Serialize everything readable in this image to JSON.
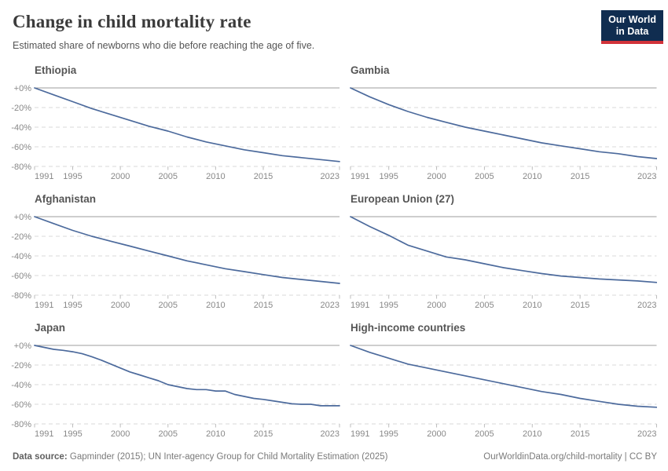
{
  "header": {
    "title": "Change in child mortality rate",
    "subtitle": "Estimated share of newborns who die before reaching the age of five.",
    "logo": {
      "line1": "Our World",
      "line2": "in Data"
    }
  },
  "footer": {
    "datasource_label": "Data source:",
    "datasource_text": "Gapminder (2015); UN Inter-agency Group for Child Mortality Estimation (2025)",
    "url_text": "OurWorldinData.org/child-mortality | CC BY"
  },
  "colors": {
    "line": "#4C6A9C",
    "zero_axis": "#9d9d9d",
    "grid": "#dadada",
    "tick": "#bdbdbd",
    "tick_label": "#888888",
    "logo_bg": "#102d50",
    "logo_red": "#d13239"
  },
  "axes": {
    "xticks": [
      1991,
      1995,
      2000,
      2005,
      2010,
      2015,
      2023
    ],
    "xrange": [
      1991,
      2023
    ],
    "ylim": [
      -80,
      0
    ],
    "yticks": [
      {
        "label": "+0%",
        "value": 0
      },
      {
        "label": "-20%",
        "value": -20
      },
      {
        "label": "-40%",
        "value": -40
      },
      {
        "label": "-60%",
        "value": -60
      },
      {
        "label": "-80%",
        "value": -80
      }
    ],
    "grid": "dashed"
  },
  "chart_data": [
    {
      "type": "line",
      "title": "Ethiopia",
      "ylim": [
        -80,
        0
      ],
      "x": [
        1991,
        1993,
        1995,
        1997,
        1999,
        2001,
        2003,
        2005,
        2007,
        2009,
        2011,
        2013,
        2015,
        2017,
        2019,
        2021,
        2023
      ],
      "values": [
        0,
        -7,
        -14,
        -21,
        -27,
        -33,
        -39,
        -44,
        -50,
        -55,
        -59,
        -63,
        -66,
        -69,
        -71,
        -73,
        -75
      ]
    },
    {
      "type": "line",
      "title": "Gambia",
      "ylim": [
        -80,
        0
      ],
      "x": [
        1991,
        1993,
        1995,
        1997,
        1999,
        2001,
        2003,
        2005,
        2007,
        2009,
        2011,
        2013,
        2015,
        2017,
        2019,
        2021,
        2023
      ],
      "values": [
        0,
        -9,
        -17,
        -24,
        -30,
        -35,
        -40,
        -44,
        -48,
        -52,
        -56,
        -59,
        -62,
        -65,
        -67,
        -70,
        -72
      ]
    },
    {
      "type": "line",
      "title": "Afghanistan",
      "ylim": [
        -80,
        0
      ],
      "x": [
        1991,
        1993,
        1995,
        1997,
        1999,
        2001,
        2003,
        2005,
        2007,
        2009,
        2011,
        2013,
        2015,
        2017,
        2019,
        2021,
        2023
      ],
      "values": [
        0,
        -7,
        -14,
        -20,
        -25,
        -30,
        -35,
        -40,
        -45,
        -49,
        -53,
        -56,
        -59,
        -62,
        -64,
        -66,
        -68
      ]
    },
    {
      "type": "line",
      "title": "European Union (27)",
      "ylim": [
        -80,
        0
      ],
      "x": [
        1991,
        1993,
        1995,
        1997,
        1999,
        2001,
        2003,
        2005,
        2007,
        2009,
        2011,
        2013,
        2015,
        2017,
        2019,
        2021,
        2023
      ],
      "values": [
        0,
        -10,
        -19,
        -29,
        -35,
        -41,
        -44,
        -48,
        -52,
        -55,
        -58,
        -60.5,
        -62,
        -63.5,
        -64.5,
        -65.5,
        -67
      ]
    },
    {
      "type": "line",
      "title": "Japan",
      "ylim": [
        -80,
        0
      ],
      "x": [
        1991,
        1992,
        1993,
        1994,
        1995,
        1996,
        1997,
        1998,
        1999,
        2000,
        2001,
        2002,
        2003,
        2004,
        2005,
        2006,
        2007,
        2008,
        2009,
        2010,
        2011,
        2012,
        2013,
        2014,
        2015,
        2016,
        2017,
        2018,
        2019,
        2020,
        2021,
        2022,
        2023
      ],
      "values": [
        0,
        -2,
        -4,
        -5,
        -6.5,
        -8.5,
        -11.5,
        -15,
        -19,
        -23,
        -27,
        -30,
        -33,
        -36,
        -40,
        -42,
        -44,
        -45,
        -45,
        -46.5,
        -46.5,
        -50,
        -52,
        -54,
        -55,
        -56.5,
        -58,
        -59.5,
        -60,
        -60,
        -61.5,
        -61.5,
        -61.5
      ]
    },
    {
      "type": "line",
      "title": "High-income countries",
      "ylim": [
        -80,
        0
      ],
      "x": [
        1991,
        1993,
        1995,
        1997,
        1999,
        2001,
        2003,
        2005,
        2007,
        2009,
        2011,
        2013,
        2015,
        2017,
        2019,
        2021,
        2023
      ],
      "values": [
        0,
        -7,
        -13,
        -19,
        -23,
        -27,
        -31,
        -35,
        -39,
        -43,
        -47,
        -50,
        -54,
        -57,
        -60,
        -62,
        -63
      ]
    }
  ]
}
